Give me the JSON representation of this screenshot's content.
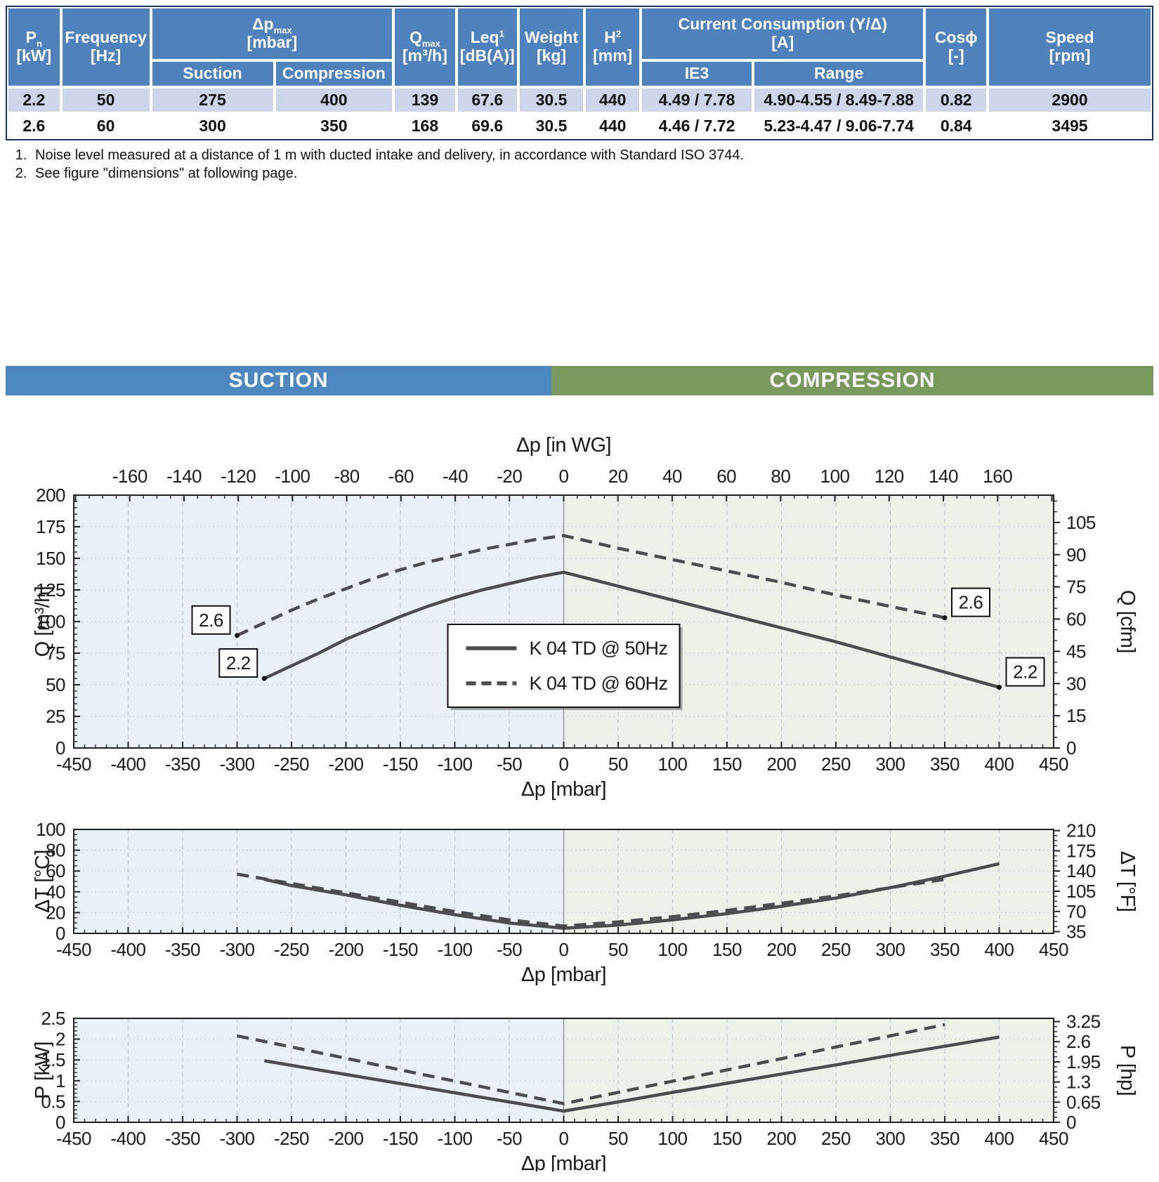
{
  "banner": {
    "suction": "SUCTION",
    "compression": "COMPRESSION"
  },
  "colors": {
    "table_header_blue": "#4f81bd",
    "table_row_alt": "#ccd5ea",
    "table_frame": "#17365d",
    "banner_blue": "#4e86c0",
    "banner_green": "#78985c",
    "plot_bg_suction": "#eaf0f8",
    "plot_bg_compression": "#ecf1ea",
    "curve": "#4a4c4e",
    "grid_major": "#b7c3cd",
    "grid_dotted": "#c6d0da",
    "zero_divider": "#8e979e",
    "axis": "#222222"
  },
  "table": {
    "header_cells": [
      {
        "id": "pn",
        "lines": [
          [
            {
              "t": "P"
            },
            {
              "t": "n",
              "sub": true
            }
          ],
          [
            {
              "t": "[kW]"
            }
          ]
        ]
      },
      {
        "id": "frequency",
        "lines": [
          [
            {
              "t": "Frequency"
            }
          ],
          [
            {
              "t": "[Hz]"
            }
          ]
        ]
      },
      {
        "id": "dp-max",
        "lines": [
          [
            {
              "t": "Δp"
            },
            {
              "t": "max",
              "sub": true
            }
          ],
          [
            {
              "t": "[mbar]"
            }
          ]
        ],
        "children": [
          "Suction",
          "Compression"
        ]
      },
      {
        "id": "q-max",
        "lines": [
          [
            {
              "t": "Q"
            },
            {
              "t": "max",
              "sub": true
            }
          ],
          [
            {
              "t": "[m³/h]"
            }
          ]
        ]
      },
      {
        "id": "leq",
        "lines": [
          [
            {
              "t": "Leq"
            },
            {
              "t": "1",
              "sup": true
            }
          ],
          [
            {
              "t": "[dB(A)]"
            }
          ]
        ]
      },
      {
        "id": "weight",
        "lines": [
          [
            {
              "t": "Weight"
            }
          ],
          [
            {
              "t": "[kg]"
            }
          ]
        ]
      },
      {
        "id": "height",
        "lines": [
          [
            {
              "t": "H"
            },
            {
              "t": "2",
              "sup": true
            }
          ],
          [
            {
              "t": "[mm]"
            }
          ]
        ]
      },
      {
        "id": "current",
        "lines": [
          [
            {
              "t": "Current Consumption (Y/Δ)"
            }
          ],
          [
            {
              "t": "[A]"
            }
          ]
        ],
        "children": [
          "IE3",
          "Range"
        ]
      },
      {
        "id": "cosphi",
        "lines": [
          [
            {
              "t": "Cosϕ"
            }
          ],
          [
            {
              "t": "[-]"
            }
          ]
        ]
      },
      {
        "id": "speed",
        "lines": [
          [
            {
              "t": "Speed"
            }
          ],
          [
            {
              "t": "[rpm]"
            }
          ]
        ]
      }
    ],
    "rows": [
      [
        "2.2",
        "50",
        "275",
        "400",
        "139",
        "67.6",
        "30.5",
        "440",
        "4.49 / 7.78",
        "4.90-4.55 / 8.49-7.88",
        "0.82",
        "2900"
      ],
      [
        "2.6",
        "60",
        "300",
        "350",
        "168",
        "69.6",
        "30.5",
        "440",
        "4.46 / 7.72",
        "5.23-4.47 / 9.06-7.74",
        "0.84",
        "3495"
      ]
    ]
  },
  "footnotes": [
    "Noise level measured at a distance of 1 m with ducted intake and delivery, in accordance with Standard ISO 3744.",
    "See figure \"dimensions\" at following page."
  ],
  "chart_data": [
    {
      "type": "line",
      "name": "flow-vs-pressure",
      "x_axis": {
        "label": "Δp [mbar]",
        "min": -450,
        "max": 450,
        "tick_step": 50,
        "minor_step": 10
      },
      "x_axis_top": {
        "label": "Δp [in WG]",
        "tick_min": -160,
        "tick_max": 160,
        "tick_step": 20,
        "minor_step": 5,
        "unit_offset": 0,
        "unit_scale": 2.49089
      },
      "y_axis": {
        "label": "Q [m³/h]",
        "min": 0,
        "max": 200,
        "tick_step": 25,
        "minor_step": 5
      },
      "y_axis_right": {
        "label": "Q [cfm]",
        "tick_min": 0,
        "tick_max": 105,
        "tick_step": 15,
        "minor_step": 5,
        "unit_offset": 0,
        "unit_scale": 1.69901
      },
      "legend": {
        "entries": [
          {
            "name": "K 04 TD @ 50Hz",
            "style": "solid"
          },
          {
            "name": "K 04 TD @ 60Hz",
            "style": "dashed"
          }
        ]
      },
      "series": [
        {
          "name": "K 04 TD @ 50Hz",
          "style": "solid",
          "points": [
            [
              -275,
              55
            ],
            [
              -250,
              65
            ],
            [
              -225,
              75
            ],
            [
              -200,
              86
            ],
            [
              -175,
              95
            ],
            [
              -150,
              104
            ],
            [
              -125,
              112
            ],
            [
              -100,
              119
            ],
            [
              -75,
              125
            ],
            [
              -50,
              130
            ],
            [
              -25,
              135
            ],
            [
              0,
              139
            ],
            [
              50,
              128
            ],
            [
              100,
              117
            ],
            [
              150,
              106
            ],
            [
              200,
              95
            ],
            [
              250,
              84
            ],
            [
              300,
              72
            ],
            [
              350,
              60
            ],
            [
              400,
              48
            ]
          ]
        },
        {
          "name": "K 04 TD @ 60Hz",
          "style": "dashed",
          "points": [
            [
              -300,
              89
            ],
            [
              -275,
              99
            ],
            [
              -250,
              109
            ],
            [
              -225,
              118
            ],
            [
              -200,
              126
            ],
            [
              -175,
              134
            ],
            [
              -150,
              141
            ],
            [
              -125,
              147
            ],
            [
              -100,
              152
            ],
            [
              -75,
              157
            ],
            [
              -50,
              161
            ],
            [
              -25,
              165
            ],
            [
              0,
              168
            ],
            [
              50,
              158
            ],
            [
              100,
              149
            ],
            [
              150,
              140
            ],
            [
              200,
              131
            ],
            [
              250,
              121
            ],
            [
              300,
              112
            ],
            [
              350,
              103
            ]
          ]
        }
      ],
      "annotations": [
        {
          "text": "2.6",
          "x": -300,
          "y": 89,
          "side": "left"
        },
        {
          "text": "2.2",
          "x": -275,
          "y": 55,
          "side": "left"
        },
        {
          "text": "2.6",
          "x": 350,
          "y": 103,
          "side": "right"
        },
        {
          "text": "2.2",
          "x": 400,
          "y": 48,
          "side": "right"
        }
      ]
    },
    {
      "type": "line",
      "name": "temperature-rise",
      "x_axis": {
        "label": "Δp [mbar]",
        "min": -450,
        "max": 450,
        "tick_step": 50,
        "minor_step": 10
      },
      "y_axis": {
        "label": "ΔT [°C]",
        "min": 0,
        "max": 100,
        "tick_step": 20,
        "minor_step": 5
      },
      "y_axis_right": {
        "label": "ΔT [°F]",
        "tick_min": 35,
        "tick_max": 210,
        "tick_step": 35,
        "minor_step": 8.75,
        "unit_offset": 32,
        "unit_scale": 0.55556
      },
      "series": [
        {
          "name": "K 04 TD @ 50Hz",
          "style": "solid",
          "points": [
            [
              -275,
              52
            ],
            [
              -250,
              46
            ],
            [
              -200,
              37
            ],
            [
              -150,
              27
            ],
            [
              -100,
              18
            ],
            [
              -50,
              10
            ],
            [
              0,
              5
            ],
            [
              50,
              8
            ],
            [
              100,
              13
            ],
            [
              150,
              19
            ],
            [
              200,
              26
            ],
            [
              250,
              34
            ],
            [
              300,
              44
            ],
            [
              350,
              55
            ],
            [
              400,
              67
            ]
          ]
        },
        {
          "name": "K 04 TD @ 60Hz",
          "style": "dashed",
          "points": [
            [
              -300,
              57
            ],
            [
              -250,
              48
            ],
            [
              -200,
              39
            ],
            [
              -150,
              30
            ],
            [
              -100,
              21
            ],
            [
              -50,
              13
            ],
            [
              0,
              7
            ],
            [
              50,
              11
            ],
            [
              100,
              16
            ],
            [
              150,
              22
            ],
            [
              200,
              29
            ],
            [
              250,
              36
            ],
            [
              300,
              44
            ],
            [
              350,
              52
            ]
          ]
        }
      ],
      "annotations": []
    },
    {
      "type": "line",
      "name": "power",
      "x_axis": {
        "label": "Δp [mbar]",
        "min": -450,
        "max": 450,
        "tick_step": 50,
        "minor_step": 10
      },
      "y_axis": {
        "label": "P [kW]",
        "min": 0,
        "max": 2.5,
        "tick_step": 0.5,
        "minor_step": 0.1
      },
      "y_axis_right": {
        "label": "P [hp]",
        "tick_min": 0,
        "tick_max": 3.25,
        "tick_step": 0.65,
        "minor_step": 0.1625,
        "unit_offset": 0,
        "unit_scale": 0.7457
      },
      "series": [
        {
          "name": "K 04 TD @ 50Hz",
          "style": "solid",
          "points": [
            [
              -275,
              1.48
            ],
            [
              -200,
              1.15
            ],
            [
              -150,
              0.93
            ],
            [
              -100,
              0.71
            ],
            [
              -50,
              0.49
            ],
            [
              0,
              0.27
            ],
            [
              50,
              0.49
            ],
            [
              100,
              0.72
            ],
            [
              150,
              0.94
            ],
            [
              200,
              1.16
            ],
            [
              250,
              1.38
            ],
            [
              300,
              1.61
            ],
            [
              350,
              1.83
            ],
            [
              400,
              2.05
            ]
          ]
        },
        {
          "name": "K 04 TD @ 60Hz",
          "style": "dashed",
          "points": [
            [
              -300,
              2.08
            ],
            [
              -250,
              1.81
            ],
            [
              -200,
              1.54
            ],
            [
              -150,
              1.26
            ],
            [
              -100,
              0.99
            ],
            [
              -50,
              0.72
            ],
            [
              0,
              0.45
            ],
            [
              50,
              0.72
            ],
            [
              100,
              0.99
            ],
            [
              150,
              1.26
            ],
            [
              200,
              1.53
            ],
            [
              250,
              1.81
            ],
            [
              300,
              2.08
            ],
            [
              350,
              2.35
            ]
          ]
        }
      ],
      "annotations": []
    }
  ]
}
